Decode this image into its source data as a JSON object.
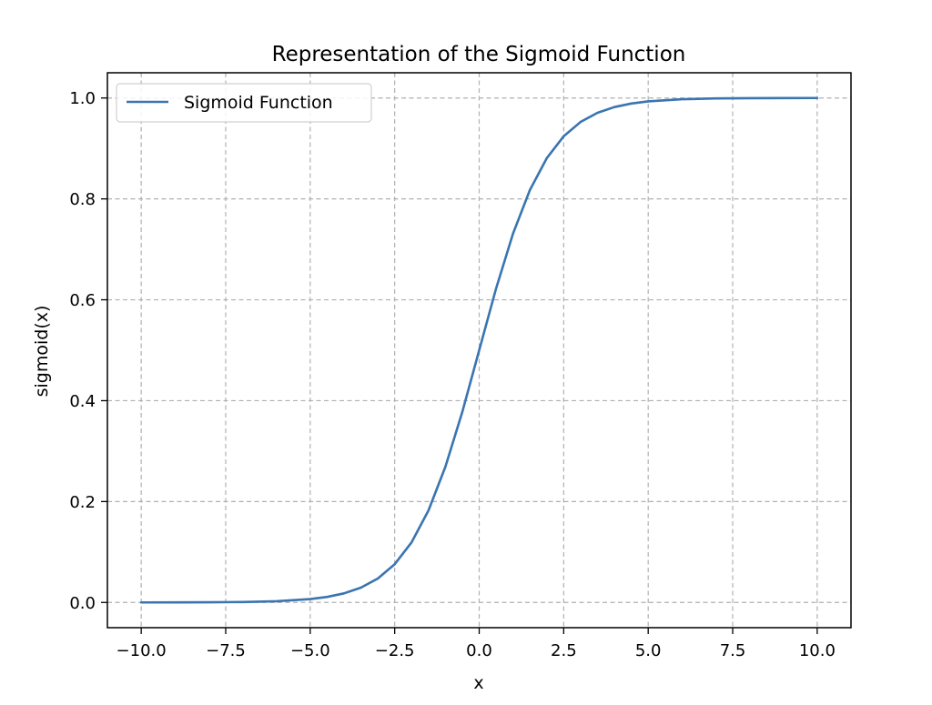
{
  "chart_data": {
    "type": "line",
    "title": "Representation of the Sigmoid Function",
    "xlabel": "x",
    "ylabel": "sigmoid(x)",
    "xlim": [
      -11.0,
      11.0
    ],
    "ylim": [
      -0.05,
      1.05
    ],
    "x_ticks": [
      -10.0,
      -7.5,
      -5.0,
      -2.5,
      0.0,
      2.5,
      5.0,
      7.5,
      10.0
    ],
    "x_tick_labels": [
      "−10.0",
      "−7.5",
      "−5.0",
      "−2.5",
      "0.0",
      "2.5",
      "5.0",
      "7.5",
      "10.0"
    ],
    "y_ticks": [
      0.0,
      0.2,
      0.4,
      0.6,
      0.8,
      1.0
    ],
    "y_tick_labels": [
      "0.0",
      "0.2",
      "0.4",
      "0.6",
      "0.8",
      "1.0"
    ],
    "grid": true,
    "grid_style": "dashed",
    "legend_position": "top-left",
    "series": [
      {
        "name": "Sigmoid Function",
        "color": "#3a75b0",
        "x": [
          -10.0,
          -9.0,
          -8.0,
          -7.0,
          -6.0,
          -5.0,
          -4.5,
          -4.0,
          -3.5,
          -3.0,
          -2.5,
          -2.0,
          -1.5,
          -1.0,
          -0.5,
          0.0,
          0.5,
          1.0,
          1.5,
          2.0,
          2.5,
          3.0,
          3.5,
          4.0,
          4.5,
          5.0,
          6.0,
          7.0,
          8.0,
          9.0,
          10.0
        ],
        "y": [
          4.54e-05,
          0.0001234,
          0.0003354,
          0.000911,
          0.002473,
          0.006693,
          0.010987,
          0.017986,
          0.029312,
          0.047426,
          0.075858,
          0.119203,
          0.182426,
          0.268941,
          0.377541,
          0.5,
          0.622459,
          0.731059,
          0.817574,
          0.880797,
          0.924142,
          0.952574,
          0.970688,
          0.982014,
          0.989013,
          0.993307,
          0.997527,
          0.999089,
          0.999665,
          0.999877,
          0.999955
        ]
      }
    ]
  }
}
